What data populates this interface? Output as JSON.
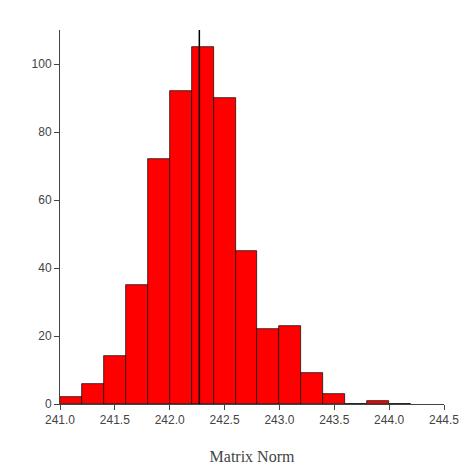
{
  "chart_data": {
    "type": "histogram",
    "xlabel": "Matrix Norm",
    "bins": [
      241.0,
      241.2,
      241.4,
      241.6,
      241.8,
      242.0,
      242.2,
      242.4,
      242.6,
      242.8,
      243.0,
      243.2,
      243.4,
      243.6,
      243.8,
      244.0,
      244.2
    ],
    "counts": [
      2,
      6,
      14,
      35,
      72,
      92,
      105,
      90,
      45,
      22,
      23,
      9,
      3,
      0,
      1,
      0
    ],
    "color": "#FF0000",
    "vline": {
      "x": 242.27,
      "color": "#000000"
    },
    "xlim": [
      241.0,
      244.5
    ],
    "ylim": [
      0,
      110
    ],
    "xticks": [
      {
        "value": 241,
        "label": "241.0"
      },
      241.5,
      {
        "value": 242,
        "label": "242.0"
      },
      242.5,
      {
        "value": 243,
        "label": "243.0"
      },
      243.5,
      {
        "value": 244,
        "label": "244.0"
      },
      244.5
    ],
    "yticks": [
      0,
      20,
      40,
      60,
      80,
      100
    ],
    "grid": false
  }
}
